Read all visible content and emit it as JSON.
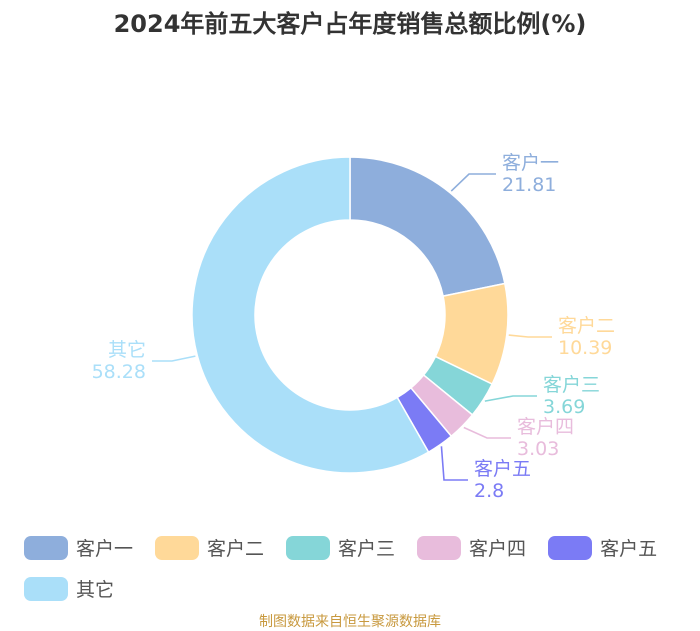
{
  "chart_data": {
    "type": "pie",
    "variant": "donut",
    "title": "2024年前五大客户占年度销售总额比例(%)",
    "slices": [
      {
        "label": "客户一",
        "value": 21.81,
        "value_text": "21.81",
        "color": "#8eaedc"
      },
      {
        "label": "客户二",
        "value": 10.39,
        "value_text": "10.39",
        "color": "#ffd999"
      },
      {
        "label": "客户三",
        "value": 3.69,
        "value_text": "3.69",
        "color": "#85d6d8"
      },
      {
        "label": "客户四",
        "value": 3.03,
        "value_text": "3.03",
        "color": "#e8bcdc"
      },
      {
        "label": "客户五",
        "value": 2.8,
        "value_text": "2.8",
        "color": "#7b7bf5"
      },
      {
        "label": "其它",
        "value": 58.28,
        "value_text": "58.28",
        "color": "#aadff9"
      }
    ],
    "legend_position": "bottom"
  },
  "source_note": "制图数据来自恒生聚源数据库"
}
